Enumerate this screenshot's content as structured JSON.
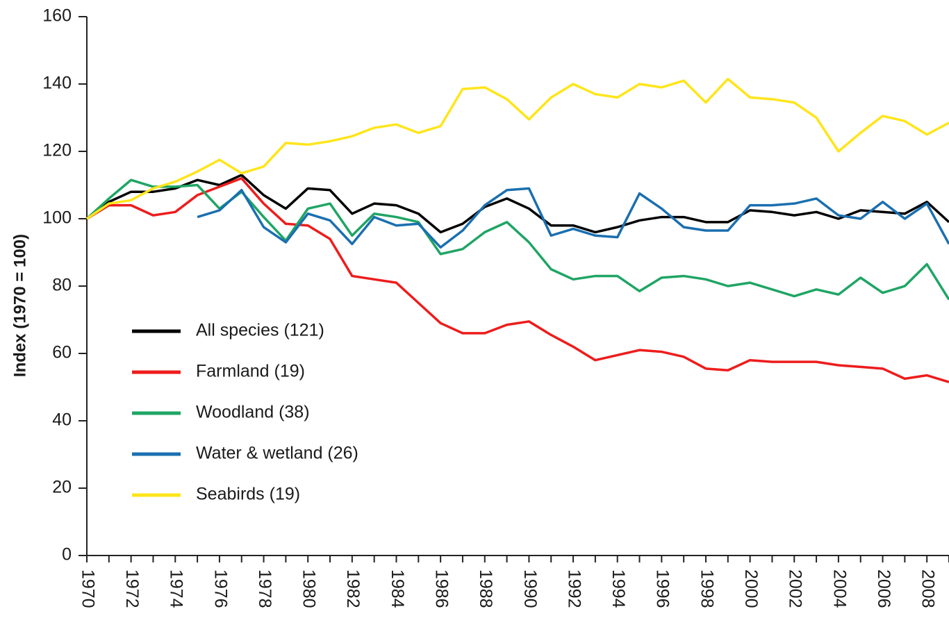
{
  "chart_data": {
    "type": "line",
    "y_label": "Index (1970 = 100)",
    "x": [
      1970,
      1971,
      1972,
      1973,
      1974,
      1975,
      1976,
      1977,
      1978,
      1979,
      1980,
      1981,
      1982,
      1983,
      1984,
      1985,
      1986,
      1987,
      1988,
      1989,
      1990,
      1991,
      1992,
      1993,
      1994,
      1995,
      1996,
      1997,
      1998,
      1999,
      2000,
      2001,
      2002,
      2003,
      2004,
      2005,
      2006,
      2007,
      2008,
      2009
    ],
    "xlim": [
      1970,
      2009
    ],
    "xticks": [
      1970,
      1972,
      1974,
      1976,
      1978,
      1980,
      1982,
      1984,
      1986,
      1988,
      1990,
      1992,
      1994,
      1996,
      1998,
      2000,
      2002,
      2004,
      2006,
      2008
    ],
    "xminor_ticks": [
      1971,
      1973,
      1975,
      1977,
      1979,
      1981,
      1983,
      1985,
      1987,
      1989,
      1991,
      1993,
      1995,
      1997,
      1999,
      2001,
      2003,
      2005,
      2007,
      2009
    ],
    "ylim": [
      0,
      160
    ],
    "yticks": [
      0,
      20,
      40,
      60,
      80,
      100,
      120,
      140,
      160
    ],
    "legend": "lower-left",
    "series": [
      {
        "name": "All species (121)",
        "color": "#000000",
        "values": [
          100,
          105,
          108,
          108,
          109,
          111.5,
          110,
          113,
          107,
          103,
          109,
          108.5,
          101.5,
          104.5,
          104,
          101.5,
          96,
          98.5,
          103.5,
          106,
          103,
          98,
          98,
          96,
          97.5,
          99.5,
          100.5,
          100.5,
          99,
          99,
          102.5,
          102,
          101,
          102,
          100,
          102.5,
          102,
          101.5,
          105,
          99
        ]
      },
      {
        "name": "Farmland (19)",
        "color": "#ee1c1c",
        "values": [
          100,
          104,
          104,
          101,
          102,
          107,
          109.5,
          112,
          104.5,
          98.5,
          98,
          94,
          83,
          82,
          81,
          75,
          69,
          66,
          66,
          68.5,
          69.5,
          65.5,
          62,
          58,
          59.5,
          61,
          60.5,
          59,
          55.5,
          55,
          58,
          57.5,
          57.5,
          57.5,
          56.5,
          56,
          55.5,
          52.5,
          53.5,
          51.5
        ]
      },
      {
        "name": "Woodland (38)",
        "color": "#1fa564",
        "values": [
          100,
          106,
          111.5,
          109.5,
          109.5,
          110,
          103,
          108,
          100.5,
          93.5,
          103,
          104.5,
          95,
          101.5,
          100.5,
          99,
          89.5,
          91,
          96,
          99,
          93,
          85,
          82,
          83,
          83,
          78.5,
          82.5,
          83,
          82,
          80,
          81,
          79,
          77,
          79,
          77.5,
          82.5,
          78,
          80,
          86.5,
          76
        ]
      },
      {
        "name": "Water & wetland (26)",
        "color": "#1a6fb0",
        "values": [
          null,
          null,
          null,
          null,
          null,
          100.5,
          102.5,
          108.5,
          97.5,
          93,
          101.5,
          99.5,
          92.5,
          100.5,
          98,
          98.5,
          91.5,
          96.5,
          104,
          108.5,
          109,
          95,
          97,
          95,
          94.5,
          107.5,
          103,
          97.5,
          96.5,
          96.5,
          104,
          104,
          104.5,
          106,
          101,
          100,
          105,
          100,
          104.5,
          92.5
        ]
      },
      {
        "name": "Seabirds (19)",
        "color": "#ffe51a",
        "values": [
          100,
          104.5,
          105.5,
          109,
          111,
          114,
          117.5,
          113.5,
          115.5,
          122.5,
          122,
          123,
          124.5,
          127,
          128,
          125.5,
          127.5,
          138.5,
          139,
          135.5,
          129.5,
          136,
          140,
          137,
          136,
          140,
          139,
          141,
          134.5,
          141.5,
          136,
          135.5,
          134.5,
          130,
          120,
          125.5,
          130.5,
          129,
          125,
          128.5
        ]
      }
    ]
  }
}
